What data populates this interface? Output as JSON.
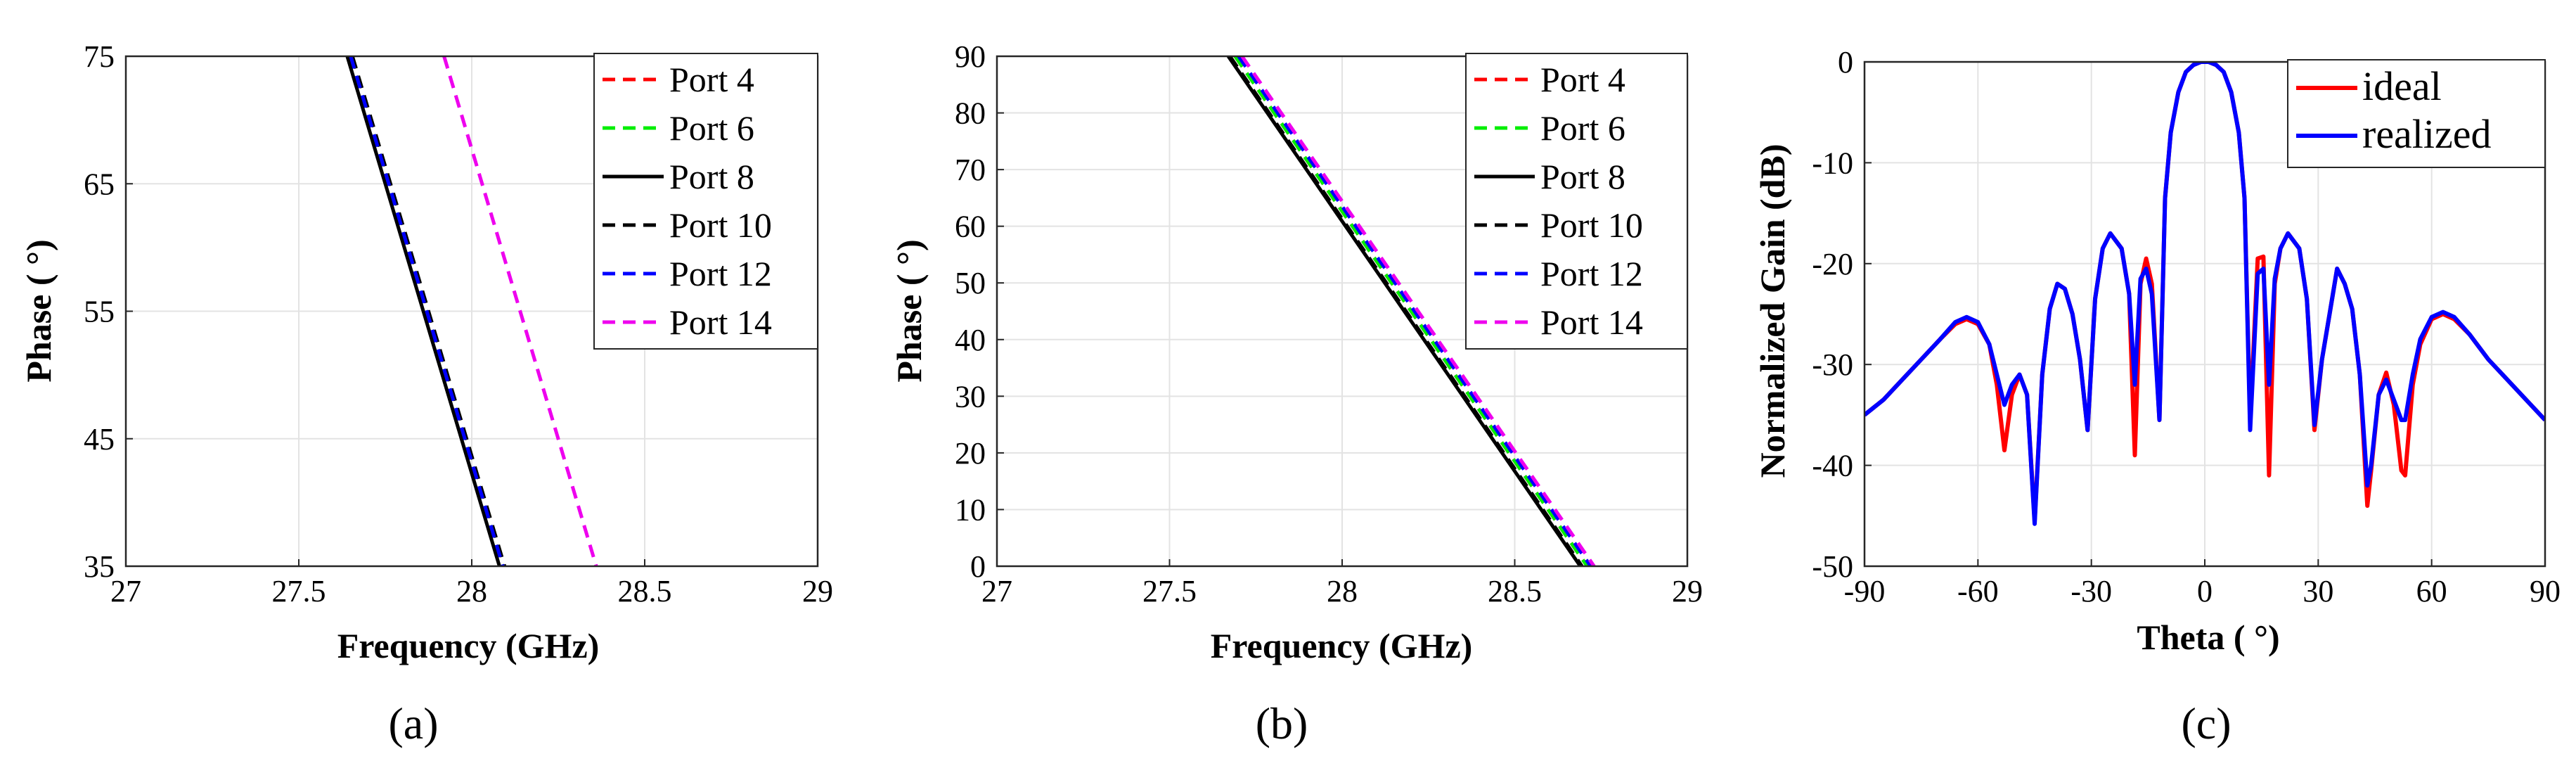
{
  "chart_data": [
    {
      "type": "line",
      "panel_label": "(a)",
      "xlabel": "Frequency (GHz)",
      "ylabel": "Phase ( °)",
      "xlim": [
        27,
        29
      ],
      "ylim": [
        35,
        75
      ],
      "xticks": [
        27,
        27.5,
        28,
        28.5,
        29
      ],
      "yticks": [
        35,
        45,
        55,
        65,
        75
      ],
      "xtick_labels": [
        "27",
        "27.5",
        "28",
        "28.5",
        "29"
      ],
      "ytick_labels": [
        "35",
        "45",
        "55",
        "65",
        "75"
      ],
      "grid": true,
      "legend_position": "top-right",
      "series": [
        {
          "name": "Port 4",
          "color": "#ff0000",
          "dash": "dashed",
          "x": [
            27.65,
            28.09
          ],
          "y": [
            75,
            35
          ]
        },
        {
          "name": "Port 6",
          "color": "#00ee00",
          "dash": "dashed",
          "x": [
            27.65,
            28.09
          ],
          "y": [
            75,
            35
          ]
        },
        {
          "name": "Port 8",
          "color": "#000000",
          "dash": "solid",
          "x": [
            27.64,
            28.08
          ],
          "y": [
            75,
            35
          ]
        },
        {
          "name": "Port 10",
          "color": "#000000",
          "dash": "dashed",
          "x": [
            27.655,
            28.095
          ],
          "y": [
            75,
            35
          ]
        },
        {
          "name": "Port 12",
          "color": "#0000ff",
          "dash": "dashed",
          "x": [
            27.65,
            28.09
          ],
          "y": [
            75,
            35
          ]
        },
        {
          "name": "Port 14",
          "color": "#ee00ee",
          "dash": "dashed",
          "x": [
            27.92,
            28.36
          ],
          "y": [
            75,
            35
          ]
        }
      ]
    },
    {
      "type": "line",
      "panel_label": "(b)",
      "xlabel": "Frequency (GHz)",
      "ylabel": "Phase ( °)",
      "xlim": [
        27,
        29
      ],
      "ylim": [
        0,
        90
      ],
      "xticks": [
        27,
        27.5,
        28,
        28.5,
        29
      ],
      "yticks": [
        0,
        10,
        20,
        30,
        40,
        50,
        60,
        70,
        80,
        90
      ],
      "xtick_labels": [
        "27",
        "27.5",
        "28",
        "28.5",
        "29"
      ],
      "ytick_labels": [
        "0",
        "10",
        "20",
        "30",
        "40",
        "50",
        "60",
        "70",
        "80",
        "90"
      ],
      "grid": true,
      "legend_position": "top-right",
      "series": [
        {
          "name": "Port 4",
          "color": "#ff0000",
          "dash": "dashed",
          "x": [
            27.69,
            28.71
          ],
          "y": [
            90,
            0
          ]
        },
        {
          "name": "Port 6",
          "color": "#00ee00",
          "dash": "dashed",
          "x": [
            27.69,
            28.71
          ],
          "y": [
            90,
            0
          ]
        },
        {
          "name": "Port 8",
          "color": "#000000",
          "dash": "solid",
          "x": [
            27.67,
            28.69
          ],
          "y": [
            90,
            0
          ]
        },
        {
          "name": "Port 10",
          "color": "#000000",
          "dash": "dashed",
          "x": [
            27.675,
            28.695
          ],
          "y": [
            90,
            0
          ]
        },
        {
          "name": "Port 12",
          "color": "#0000ff",
          "dash": "dashed",
          "x": [
            27.7,
            28.72
          ],
          "y": [
            90,
            0
          ]
        },
        {
          "name": "Port 14",
          "color": "#ee00ee",
          "dash": "dashed",
          "x": [
            27.71,
            28.73
          ],
          "y": [
            90,
            0
          ]
        }
      ]
    },
    {
      "type": "line",
      "panel_label": "(c)",
      "xlabel": "Theta ( °)",
      "ylabel": "Normalized Gain (dB)",
      "xlim": [
        -90,
        90
      ],
      "ylim": [
        -50,
        0
      ],
      "xticks": [
        -90,
        -60,
        -30,
        0,
        30,
        60,
        90
      ],
      "yticks": [
        -50,
        -40,
        -30,
        -20,
        -10,
        0
      ],
      "xtick_labels": [
        "-90",
        "-60",
        "-30",
        "0",
        "30",
        "60",
        "90"
      ],
      "ytick_labels": [
        "-50",
        "-40",
        "-30",
        "-20",
        "-10",
        "0"
      ],
      "grid": true,
      "legend_position": "top-right",
      "series": [
        {
          "name": "ideal",
          "color": "#ff0000",
          "dash": "solid",
          "x": [
            -90,
            -85,
            -80,
            -75,
            -70,
            -66,
            -63,
            -60,
            -57,
            -55,
            -53,
            -51,
            -49,
            -47,
            -45,
            -43,
            -41,
            -39,
            -37,
            -35,
            -33,
            -31,
            -29,
            -27,
            -25,
            -22,
            -20,
            -18.5,
            -17,
            -15.5,
            -14,
            -12,
            -10.5,
            -9,
            -7,
            -5,
            -3,
            -1,
            0,
            1,
            3,
            5,
            7,
            9,
            10.5,
            12,
            14,
            15.5,
            17,
            18.5,
            20,
            22,
            25,
            27,
            29,
            31,
            33,
            35,
            37,
            39,
            41,
            43,
            44,
            46,
            48,
            50,
            52,
            53,
            55,
            57,
            60,
            63,
            66,
            70,
            75,
            80,
            85,
            90
          ],
          "y": [
            -35,
            -33.5,
            -31.5,
            -29.5,
            -27.5,
            -26,
            -25.5,
            -26,
            -28,
            -32,
            -38.5,
            -33,
            -31,
            -33,
            -45.5,
            -31,
            -24.5,
            -22,
            -22.5,
            -25,
            -29.5,
            -36.5,
            -23.5,
            -18.5,
            -17,
            -18.5,
            -23,
            -39,
            -22,
            -19.5,
            -22,
            -35.5,
            -13.5,
            -7,
            -3,
            -1,
            -0.3,
            0,
            0,
            0,
            -0.3,
            -1,
            -3,
            -7,
            -13.5,
            -35.5,
            -19.5,
            -19.3,
            -41,
            -22,
            -18.5,
            -17,
            -18.5,
            -23.5,
            -36.5,
            -29.5,
            -25,
            -20.5,
            -22,
            -24.5,
            -31,
            -44,
            -40.5,
            -33,
            -30.8,
            -34,
            -40.5,
            -41,
            -32,
            -28,
            -25.5,
            -25,
            -25.5,
            -27,
            -29.5,
            -31.5,
            -33.5,
            -35.5
          ]
        },
        {
          "name": "realized",
          "color": "#0000ff",
          "dash": "solid",
          "x": [
            -90,
            -85,
            -80,
            -75,
            -70,
            -66,
            -63,
            -60,
            -57,
            -55,
            -53,
            -51,
            -49,
            -47,
            -45,
            -43,
            -41,
            -39,
            -37,
            -35,
            -33,
            -31,
            -29,
            -27,
            -25,
            -22,
            -20,
            -18.5,
            -17,
            -15.5,
            -14,
            -12,
            -10.5,
            -9,
            -7,
            -5,
            -3,
            -1,
            0,
            1,
            3,
            5,
            7,
            9,
            10.5,
            12,
            14,
            15.5,
            17,
            18.5,
            20,
            22,
            25,
            27,
            29,
            31,
            33,
            35,
            37,
            39,
            41,
            43,
            44,
            46,
            48,
            50,
            52,
            53,
            55,
            57,
            60,
            63,
            66,
            70,
            75,
            80,
            85,
            90
          ],
          "y": [
            -35,
            -33.5,
            -31.5,
            -29.5,
            -27.5,
            -25.8,
            -25.3,
            -25.8,
            -28,
            -31,
            -34,
            -32,
            -31,
            -33,
            -45.8,
            -31,
            -24.5,
            -22,
            -22.5,
            -25,
            -29.5,
            -36.5,
            -23.5,
            -18.5,
            -17,
            -18.5,
            -23,
            -32,
            -21.5,
            -20.5,
            -23,
            -35.5,
            -13.5,
            -7,
            -3,
            -1,
            -0.3,
            0,
            0,
            0,
            -0.3,
            -1,
            -3,
            -7,
            -13.5,
            -36.5,
            -21,
            -20.5,
            -32,
            -21.5,
            -18.5,
            -17,
            -18.5,
            -23.5,
            -36,
            -29.5,
            -25,
            -20.5,
            -22,
            -24.5,
            -31,
            -42,
            -40,
            -33,
            -31.5,
            -33.5,
            -35.5,
            -35.5,
            -31,
            -27.5,
            -25.3,
            -24.8,
            -25.3,
            -27,
            -29.5,
            -31.5,
            -33.5,
            -35.5
          ]
        }
      ]
    }
  ]
}
